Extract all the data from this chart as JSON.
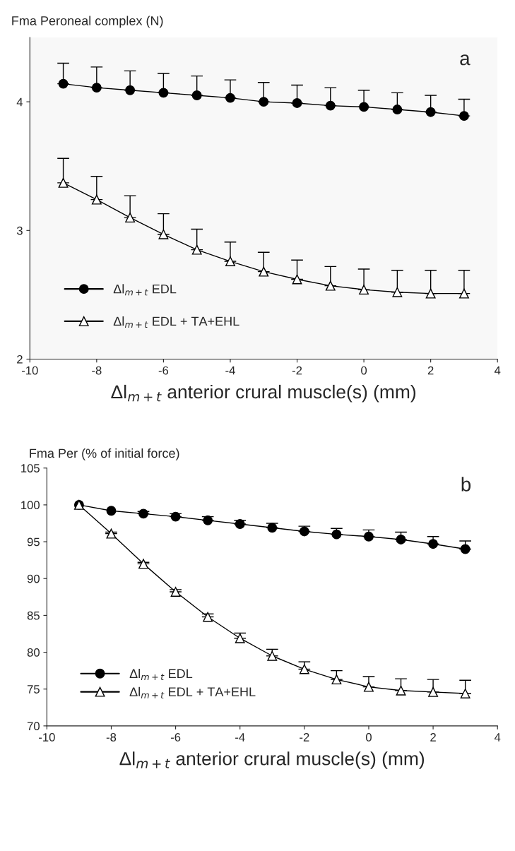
{
  "chart_data": [
    {
      "type": "line",
      "ylabel": "Fma Peroneal complex (N)",
      "xlabel": "Δl$_{m+t}$ anterior crural muscle(s) (mm)",
      "annotations": [
        "a"
      ],
      "x": [
        -9,
        -8,
        -7,
        -6,
        -5,
        -4,
        -3,
        -2,
        -1,
        0,
        1,
        2,
        3
      ],
      "xlim": [
        -10,
        4
      ],
      "xticks": [
        -10,
        -8,
        -6,
        -4,
        -2,
        0,
        2,
        4
      ],
      "ylim": [
        2,
        4.5
      ],
      "yticks": [
        2,
        3,
        4
      ],
      "grid": false,
      "legend": "bottom left",
      "line_style": "solid",
      "series": [
        {
          "name": "Δl$_{m+t}$ EDL",
          "color": "#000000",
          "marker": "circle",
          "values": [
            4.14,
            4.11,
            4.09,
            4.07,
            4.05,
            4.03,
            4.0,
            3.99,
            3.97,
            3.96,
            3.94,
            3.92,
            3.89
          ],
          "errors": [
            [
              4.14,
              4.3
            ],
            [
              4.11,
              4.27
            ],
            [
              4.09,
              4.24
            ],
            [
              4.07,
              4.22
            ],
            [
              4.05,
              4.2
            ],
            [
              4.03,
              4.17
            ],
            [
              4.0,
              4.15
            ],
            [
              3.99,
              4.13
            ],
            [
              3.97,
              4.11
            ],
            [
              3.96,
              4.09
            ],
            [
              3.94,
              4.07
            ],
            [
              3.92,
              4.05
            ],
            [
              3.89,
              4.02
            ]
          ]
        },
        {
          "name": "Δl$_{m+t}$ EDL + TA+EHL",
          "color": "#000000",
          "marker": "triangle",
          "values": [
            3.37,
            3.24,
            3.1,
            2.97,
            2.85,
            2.76,
            2.68,
            2.62,
            2.57,
            2.54,
            2.52,
            2.51,
            2.51
          ],
          "errors": [
            [
              3.37,
              3.56
            ],
            [
              3.24,
              3.42
            ],
            [
              3.1,
              3.27
            ],
            [
              2.97,
              3.13
            ],
            [
              2.85,
              3.01
            ],
            [
              2.76,
              2.91
            ],
            [
              2.68,
              2.83
            ],
            [
              2.62,
              2.77
            ],
            [
              2.57,
              2.72
            ],
            [
              2.54,
              2.7
            ],
            [
              2.52,
              2.69
            ],
            [
              2.51,
              2.69
            ],
            [
              2.51,
              2.69
            ]
          ]
        }
      ]
    },
    {
      "type": "line",
      "ylabel": "Fma Per (% of initial force)",
      "xlabel": "Δl$_{m+t}$ anterior crural muscle(s) (mm)",
      "annotations": [
        "b"
      ],
      "x": [
        -9,
        -8,
        -7,
        -6,
        -5,
        -4,
        -3,
        -2,
        -1,
        0,
        1,
        2,
        3
      ],
      "xlim": [
        -10,
        4
      ],
      "xticks": [
        -10,
        -8,
        -6,
        -4,
        -2,
        0,
        2,
        4
      ],
      "ylim": [
        70,
        105
      ],
      "yticks": [
        70,
        75,
        80,
        85,
        90,
        95,
        100,
        105
      ],
      "grid": false,
      "legend": "bottom left",
      "line_style": "solid",
      "series": [
        {
          "name": "Δl$_{m+t}$ EDL",
          "color": "#000000",
          "marker": "circle",
          "values": [
            100,
            99.2,
            98.8,
            98.4,
            97.9,
            97.4,
            96.9,
            96.4,
            96.0,
            95.7,
            95.3,
            94.7,
            94.0
          ],
          "errors": [
            null,
            null,
            [
              98.8,
              99.1
            ],
            [
              98.4,
              98.8
            ],
            [
              97.9,
              98.4
            ],
            [
              97.4,
              97.9
            ],
            [
              96.9,
              97.5
            ],
            [
              96.4,
              97.1
            ],
            [
              96.0,
              96.8
            ],
            [
              95.7,
              96.6
            ],
            [
              95.3,
              96.3
            ],
            [
              94.7,
              95.7
            ],
            [
              94.0,
              95.1
            ]
          ]
        },
        {
          "name": "Δl$_{m+t}$ EDL + TA+EHL",
          "color": "#000000",
          "marker": "triangle",
          "values": [
            100,
            96.1,
            92.0,
            88.2,
            84.8,
            81.9,
            79.5,
            77.7,
            76.3,
            75.3,
            74.8,
            74.6,
            74.4
          ],
          "errors": [
            null,
            [
              96.1,
              96.3
            ],
            [
              92.0,
              92.2
            ],
            [
              88.2,
              88.5
            ],
            [
              84.8,
              85.2
            ],
            [
              81.9,
              82.6
            ],
            [
              79.5,
              80.4
            ],
            [
              77.7,
              78.7
            ],
            [
              76.3,
              77.5
            ],
            [
              75.3,
              76.7
            ],
            [
              74.8,
              76.4
            ],
            [
              74.6,
              76.3
            ],
            [
              74.4,
              76.2
            ]
          ]
        }
      ]
    }
  ]
}
